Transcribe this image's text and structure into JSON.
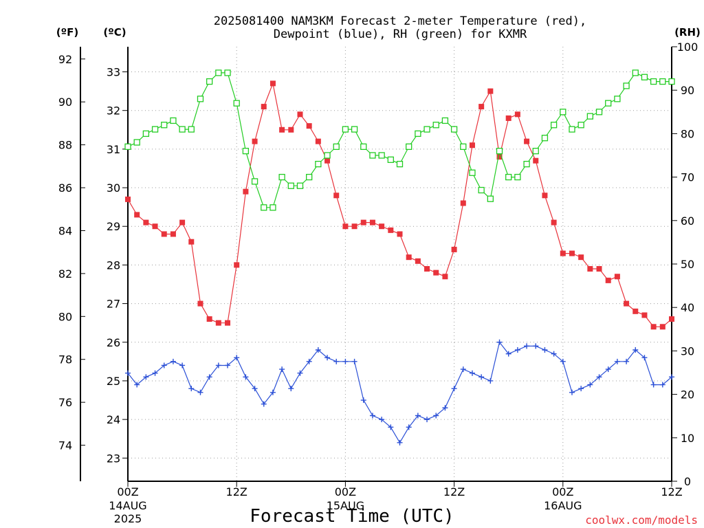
{
  "chart_data": {
    "type": "line",
    "title_lines": [
      "2025081400 NAM3KM Forecast 2-meter Temperature (red),",
      "Dewpoint (blue), RH (green) for KXMR"
    ],
    "xlabel": "Forecast Time (UTC)",
    "credit": "coolwx.com/models",
    "units": {
      "fahrenheit": "(ºF)",
      "celsius": "(ºC)",
      "rh": "(RH)"
    },
    "x_ticks": [
      {
        "hour": 0,
        "label": "00Z",
        "date": "14AUG",
        "year": "2025"
      },
      {
        "hour": 12,
        "label": "12Z",
        "date": "",
        "year": ""
      },
      {
        "hour": 24,
        "label": "00Z",
        "date": "15AUG",
        "year": ""
      },
      {
        "hour": 36,
        "label": "12Z",
        "date": "",
        "year": ""
      },
      {
        "hour": 48,
        "label": "00Z",
        "date": "16AUG",
        "year": ""
      },
      {
        "hour": 60,
        "label": "12Z",
        "date": "",
        "year": ""
      }
    ],
    "xlim": [
      0,
      60
    ],
    "celsius_ticks": [
      "23",
      "24",
      "25",
      "26",
      "27",
      "28",
      "29",
      "30",
      "31",
      "32",
      "33"
    ],
    "fahrenheit_ticks": [
      "74",
      "76",
      "78",
      "80",
      "82",
      "84",
      "86",
      "88",
      "90",
      "92"
    ],
    "rh_ticks": [
      "0",
      "10",
      "20",
      "30",
      "40",
      "50",
      "60",
      "70",
      "80",
      "90",
      "100"
    ],
    "ylim_celsius": [
      22.4,
      33.65
    ],
    "ylim_rh": [
      0,
      100
    ],
    "grid": true,
    "colors": {
      "temperature": "#e8333b",
      "dewpoint": "#2a4fd6",
      "rh": "#22cc22"
    },
    "series": [
      {
        "key": "temperature",
        "axis": "celsius",
        "marker": "filled-square",
        "values": [
          29.7,
          29.3,
          29.1,
          29.0,
          28.8,
          28.8,
          29.1,
          28.6,
          27.0,
          26.6,
          26.5,
          26.5,
          28.0,
          29.9,
          31.2,
          32.1,
          32.7,
          31.5,
          31.5,
          31.9,
          31.6,
          31.2,
          30.7,
          29.8,
          29.0,
          29.0,
          29.1,
          29.1,
          29.0,
          28.9,
          28.8,
          28.2,
          28.1,
          27.9,
          27.8,
          27.7,
          28.4,
          29.6,
          31.1,
          32.1,
          32.5,
          30.8,
          31.8,
          31.9,
          31.2,
          30.7,
          29.8,
          29.1,
          28.3,
          28.3,
          28.2,
          27.9,
          27.9,
          27.6,
          27.7,
          27.0,
          26.8,
          26.7,
          26.4,
          26.4,
          26.6
        ]
      },
      {
        "key": "dewpoint",
        "axis": "celsius",
        "marker": "plus",
        "values": [
          25.2,
          24.9,
          25.1,
          25.2,
          25.4,
          25.5,
          25.4,
          24.8,
          24.7,
          25.1,
          25.4,
          25.4,
          25.6,
          25.1,
          24.8,
          24.4,
          24.7,
          25.3,
          24.8,
          25.2,
          25.5,
          25.8,
          25.6,
          25.5,
          25.5,
          25.5,
          24.5,
          24.1,
          24.0,
          23.8,
          23.4,
          23.8,
          24.1,
          24.0,
          24.1,
          24.3,
          24.8,
          25.3,
          25.2,
          25.1,
          25.0,
          26.0,
          25.7,
          25.8,
          25.9,
          25.9,
          25.8,
          25.7,
          25.5,
          24.7,
          24.8,
          24.9,
          25.1,
          25.3,
          25.5,
          25.5,
          25.8,
          25.6,
          24.9,
          24.9,
          25.1
        ]
      },
      {
        "key": "rh",
        "axis": "rh",
        "marker": "open-square",
        "values": [
          77,
          78,
          80,
          81,
          82,
          83,
          81,
          81,
          88,
          92,
          94,
          94,
          87,
          76,
          69,
          63,
          63,
          70,
          68,
          68,
          70,
          73,
          75,
          77,
          81,
          81,
          77,
          75,
          75,
          74,
          73,
          77,
          80,
          81,
          82,
          83,
          81,
          77,
          71,
          67,
          65,
          76,
          70,
          70,
          73,
          76,
          79,
          82,
          85,
          81,
          82,
          84,
          85,
          87,
          88,
          91,
          94,
          93,
          92,
          92,
          92
        ]
      }
    ]
  }
}
